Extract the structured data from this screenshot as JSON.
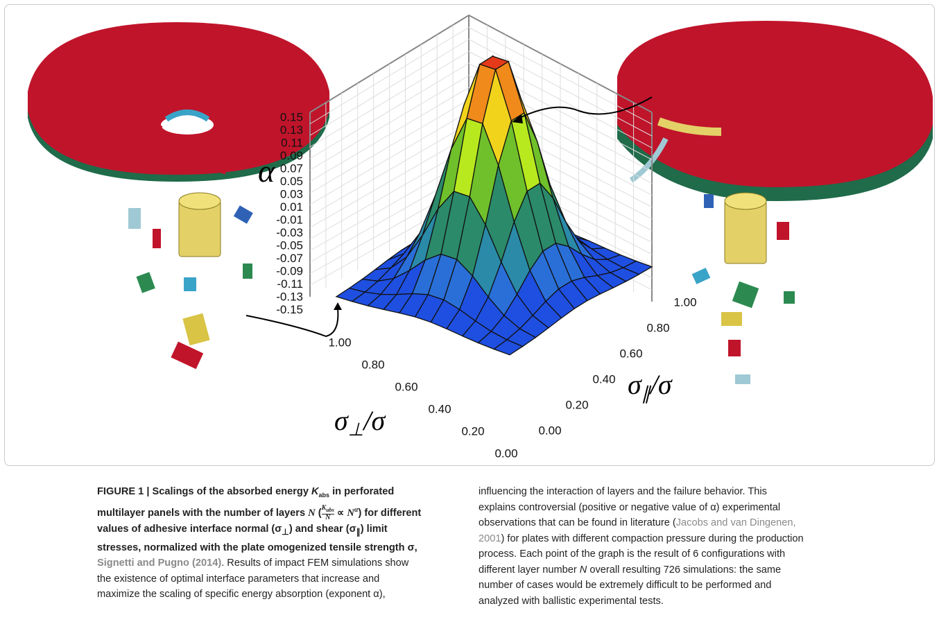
{
  "figure": {
    "z_axis_label": "α",
    "x_axis_label": {
      "sigma": "σ",
      "sub": "⊥",
      "denom": "/σ"
    },
    "y_axis_label": {
      "sigma": "σ",
      "sub": "∥",
      "denom": "/σ"
    },
    "z_ticks": [
      "0.15",
      "0.13",
      "0.11",
      "0.09",
      "0.07",
      "0.05",
      "0.03",
      "0.01",
      "-0.01",
      "-0.03",
      "-0.05",
      "-0.07",
      "-0.09",
      "-0.11",
      "-0.13",
      "-0.15"
    ],
    "x_ticks": [
      "1.00",
      "0.80",
      "0.60",
      "0.40",
      "0.20",
      "0.00"
    ],
    "y_ticks": [
      "1.00",
      "0.80",
      "0.60",
      "0.40",
      "0.20",
      "0.00"
    ]
  },
  "caption": {
    "t1": "FIGURE 1 | Scalings of the absorbed energy ",
    "k": "K",
    "k_sub": "abs",
    "t2": " in perforated multilayer panels with the number of layers ",
    "n": "N",
    "frac_num": "K",
    "frac_num_sub": "abs",
    "frac_den": "N",
    "prop": " ∝ ",
    "n2": "N",
    "alpha_sup": "α",
    "t3": " for different values of adhesive interface normal (σ",
    "perp": "⊥",
    "t4": ") and shear (σ",
    "par": "∥",
    "t5": ") limit stresses, normalized with the plate omogenized tensile strength σ,",
    "citation_1": "Signetti and Pugno (2014)",
    "t6": ". Results of impact FEM simulations show the existence of optimal interface parameters that increase and maximize the scaling of specific energy absorption (exponent α),",
    "t7": "influencing the interaction of layers and the failure behavior. This explains controversial (positive or negative value of α) experimental observations that can be found in literature (",
    "citation_2": "Jacobs and van Dingenen, 2001",
    "t8": ") for plates with different compaction pressure during the production process. Each point of the graph is the result of 6 configurations with different layer number ",
    "n3": "N",
    "t9": " overall resulting 726 simulations: the same number of cases would be extremely difficult to be performed and analyzed with ballistic experimental tests."
  }
}
